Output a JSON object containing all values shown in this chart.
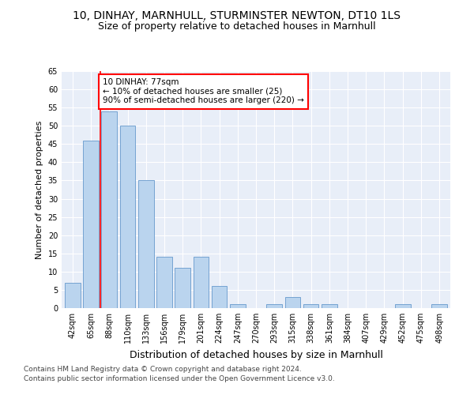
{
  "title1": "10, DINHAY, MARNHULL, STURMINSTER NEWTON, DT10 1LS",
  "title2": "Size of property relative to detached houses in Marnhull",
  "xlabel": "Distribution of detached houses by size in Marnhull",
  "ylabel": "Number of detached properties",
  "categories": [
    "42sqm",
    "65sqm",
    "88sqm",
    "110sqm",
    "133sqm",
    "156sqm",
    "179sqm",
    "201sqm",
    "224sqm",
    "247sqm",
    "270sqm",
    "293sqm",
    "315sqm",
    "338sqm",
    "361sqm",
    "384sqm",
    "407sqm",
    "429sqm",
    "452sqm",
    "475sqm",
    "498sqm"
  ],
  "values": [
    7,
    46,
    54,
    50,
    35,
    14,
    11,
    14,
    6,
    1,
    0,
    1,
    3,
    1,
    1,
    0,
    0,
    0,
    1,
    0,
    1
  ],
  "bar_color": "#bad4ee",
  "bar_edge_color": "#6699cc",
  "red_line_x": 1.5,
  "annotation_text": "10 DINHAY: 77sqm\n← 10% of detached houses are smaller (25)\n90% of semi-detached houses are larger (220) →",
  "annotation_box_color": "white",
  "annotation_box_edge": "red",
  "ylim": [
    0,
    65
  ],
  "yticks": [
    0,
    5,
    10,
    15,
    20,
    25,
    30,
    35,
    40,
    45,
    50,
    55,
    60,
    65
  ],
  "footer1": "Contains HM Land Registry data © Crown copyright and database right 2024.",
  "footer2": "Contains public sector information licensed under the Open Government Licence v3.0.",
  "bg_color": "#e8eef8",
  "title1_fontsize": 10,
  "title2_fontsize": 9,
  "xlabel_fontsize": 9,
  "ylabel_fontsize": 8,
  "tick_fontsize": 7,
  "annotation_fontsize": 7.5,
  "footer_fontsize": 6.5
}
